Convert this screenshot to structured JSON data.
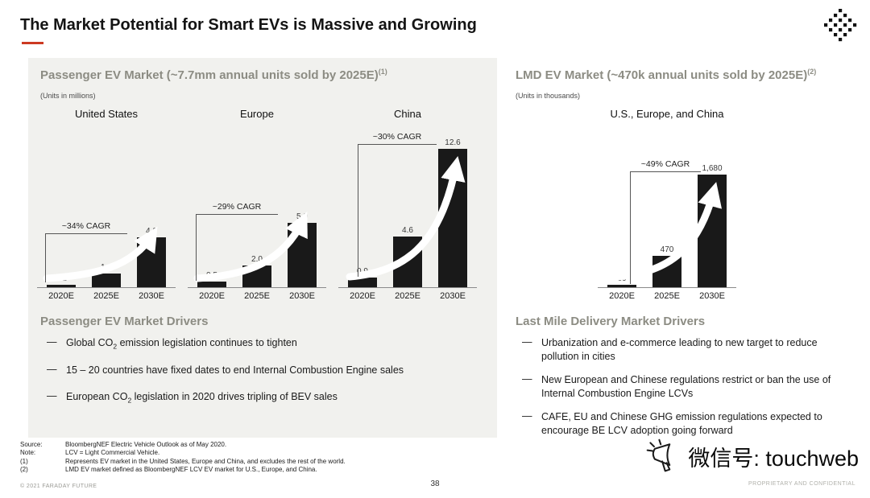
{
  "slide": {
    "title": "The Market Potential for Smart EVs is Massive and Growing",
    "page_number": "38",
    "copyright": "© 2021 FARADAY FUTURE",
    "confidential": "PROPRIETARY AND CONFIDENTIAL",
    "watermark": "微信号: touchweb",
    "accent_color": "#cc3a22",
    "bar_color": "#191919",
    "panel_color": "#f1f1ee",
    "header_color": "#8c8c83"
  },
  "passenger": {
    "title": "Passenger EV Market (~7.7mm annual units sold by 2025E)",
    "footnote_ref": "(1)",
    "units_note": "(Units in millions)",
    "drivers_title": "Passenger EV Market Drivers",
    "bullet": "—",
    "drivers": [
      {
        "pre": "Global CO",
        "sub": "2",
        "post": " emission legislation continues to tighten"
      },
      {
        "pre": "15 – 20 countries have fixed dates to end Internal Combustion Engine sales",
        "sub": "",
        "post": ""
      },
      {
        "pre": "European CO",
        "sub": "2",
        "post": " legislation in 2020 drives tripling of BEV sales"
      }
    ]
  },
  "lmd": {
    "title": "LMD EV Market (~470k annual units sold by 2025E)",
    "footnote_ref": "(2)",
    "units_note": "(Units in thousands)",
    "drivers_title": "Last Mile Delivery Market Drivers",
    "bullet": "—",
    "drivers": [
      {
        "text": "Urbanization and e-commerce leading to new target to reduce pollution in cities"
      },
      {
        "text": "New European and Chinese regulations restrict or ban the use of Internal Combustion Engine LCVs"
      },
      {
        "text": "CAFE, EU and Chinese GHG emission regulations expected to encourage BE LCV adoption going forward"
      }
    ]
  },
  "footnotes": [
    {
      "label": "Source:",
      "text": "BloombergNEF Electric Vehicle Outlook as of May 2020."
    },
    {
      "label": "Note:",
      "text": "LCV = Light Commercial Vehicle."
    },
    {
      "label": "(1)",
      "text": "Represents EV market in the United States, Europe and China, and excludes the rest of the world."
    },
    {
      "label": "(2)",
      "text": "LMD EV market defined as BloombergNEF LCV EV market for U.S., Europe, and China."
    }
  ],
  "chart_data": [
    {
      "type": "bar",
      "title": "United States",
      "categories": [
        "2020E",
        "2025E",
        "2030E"
      ],
      "values": [
        0.2,
        1.1,
        4.0
      ],
      "value_labels": [
        "0.2",
        "1.1",
        "4.0"
      ],
      "cagr": "~34% CAGR",
      "units": "millions",
      "ylim": [
        0,
        4.0
      ],
      "legend": "none",
      "grid": false
    },
    {
      "type": "bar",
      "title": "Europe",
      "categories": [
        "2020E",
        "2025E",
        "2030E"
      ],
      "values": [
        0.5,
        2.0,
        5.9
      ],
      "value_labels": [
        "0.5",
        "2.0",
        "5.9"
      ],
      "cagr": "~29% CAGR",
      "units": "millions",
      "ylim": [
        0,
        5.9
      ],
      "legend": "none",
      "grid": false
    },
    {
      "type": "bar",
      "title": "China",
      "categories": [
        "2020E",
        "2025E",
        "2030E"
      ],
      "values": [
        0.9,
        4.6,
        12.6
      ],
      "value_labels": [
        "0.9",
        "4.6",
        "12.6"
      ],
      "cagr": "~30% CAGR",
      "units": "millions",
      "ylim": [
        0,
        12.6
      ],
      "legend": "none",
      "grid": false
    },
    {
      "type": "bar",
      "title": "U.S., Europe, and China",
      "categories": [
        "2020E",
        "2025E",
        "2030E"
      ],
      "values": [
        30,
        470,
        1680
      ],
      "value_labels": [
        "30",
        "470",
        "1,680"
      ],
      "cagr": "~49% CAGR",
      "units": "thousands",
      "ylim": [
        0,
        1680
      ],
      "legend": "none",
      "grid": false
    }
  ]
}
